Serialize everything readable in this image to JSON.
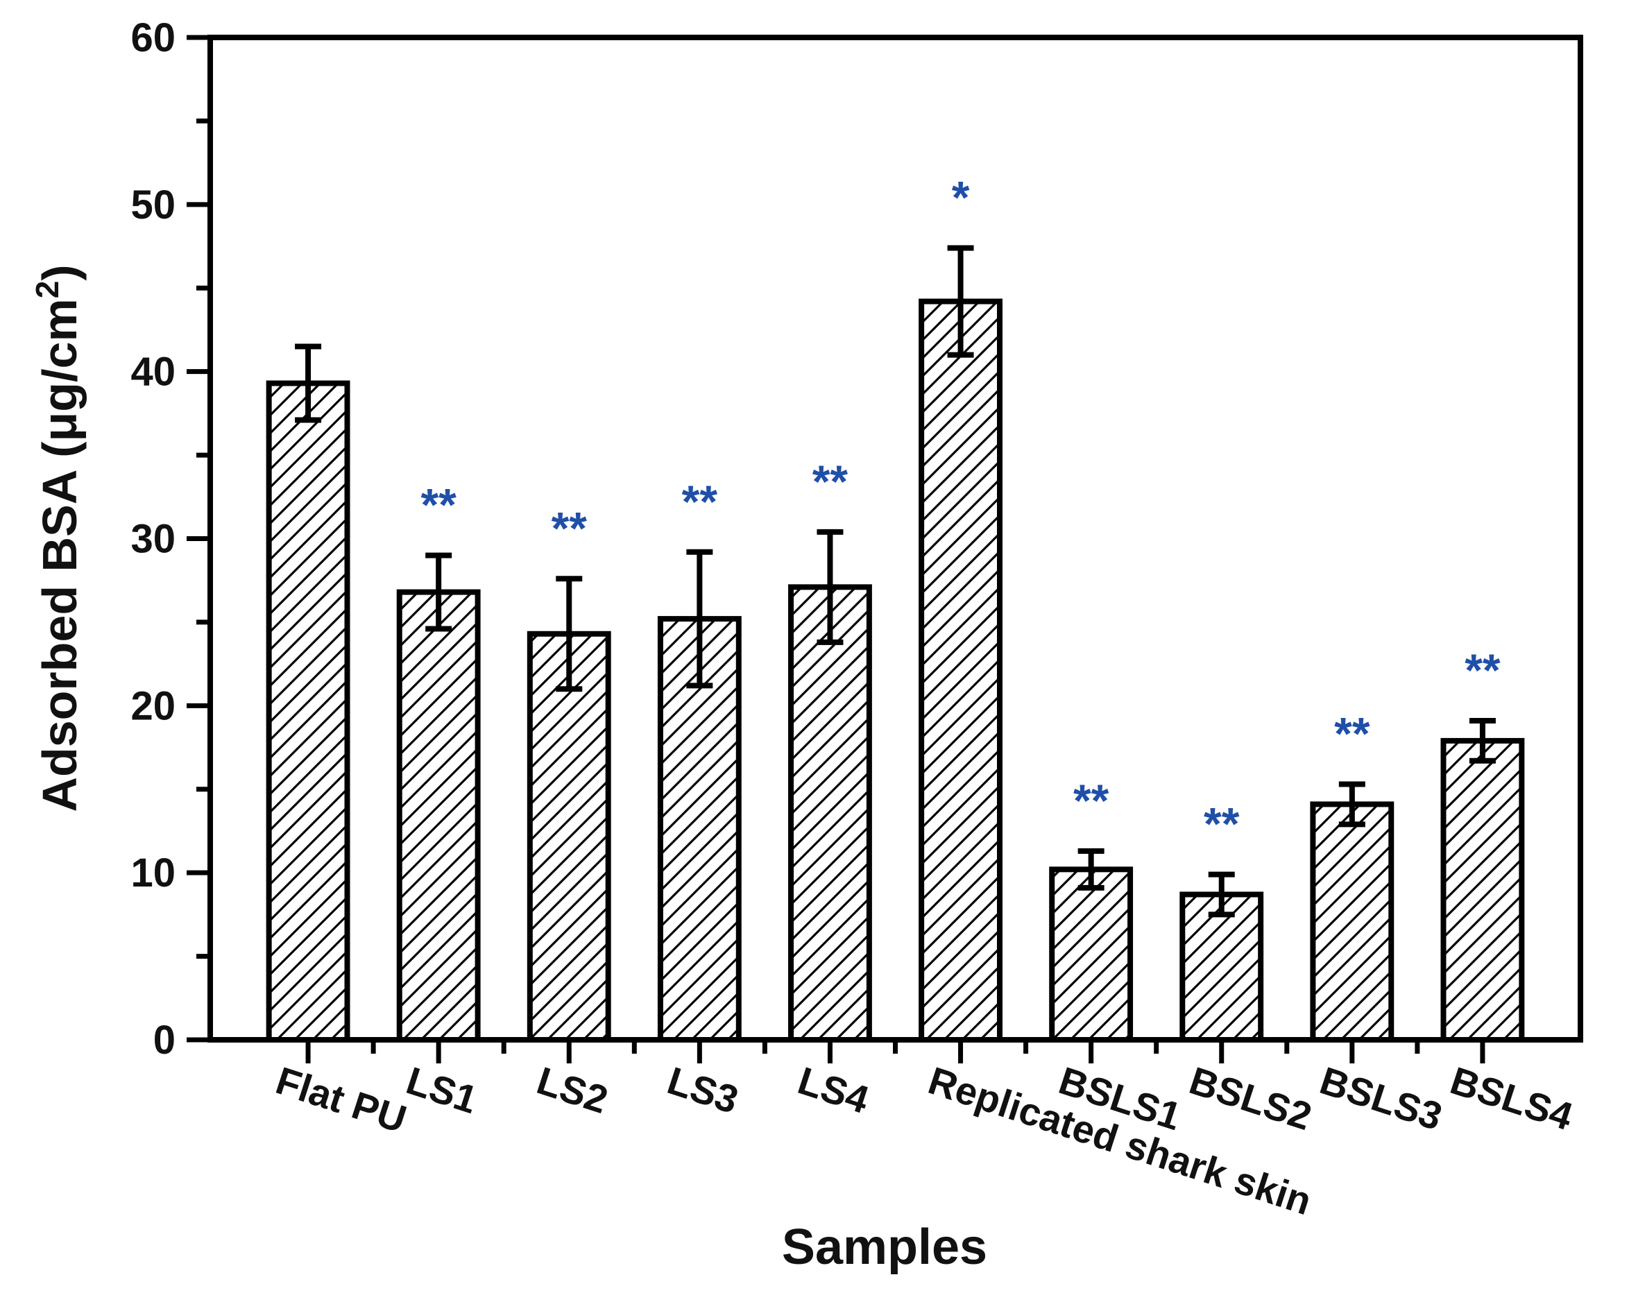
{
  "chart_data": {
    "type": "bar",
    "xlabel": "Samples",
    "ylabel": "Adsorbed BSA (μg/cm",
    "ylabel_superscript": "2",
    "ylabel_close": ")",
    "ylim": [
      0,
      60
    ],
    "yticks": [
      "0",
      "10",
      "20",
      "30",
      "40",
      "50",
      "60"
    ],
    "grid": false,
    "pattern": "diagonal-hatch",
    "colors": {
      "bar_edge": "#000000",
      "hatch": "#000000",
      "significance": "#1f4fa8",
      "axis": "#000000"
    },
    "bars": [
      {
        "category": "Flat PU",
        "value": 39.3,
        "error": 2.2,
        "sig": ""
      },
      {
        "category": "LS1",
        "value": 26.8,
        "error": 2.2,
        "sig": "**"
      },
      {
        "category": "LS2",
        "value": 24.3,
        "error": 3.3,
        "sig": "**"
      },
      {
        "category": "LS3",
        "value": 25.2,
        "error": 4.0,
        "sig": "**"
      },
      {
        "category": "LS4",
        "value": 27.1,
        "error": 3.3,
        "sig": "**"
      },
      {
        "category": "Replicated shark skin",
        "value": 44.2,
        "error": 3.2,
        "sig": "*"
      },
      {
        "category": "BSLS1",
        "value": 10.2,
        "error": 1.1,
        "sig": "**"
      },
      {
        "category": "BSLS2",
        "value": 8.7,
        "error": 1.2,
        "sig": "**"
      },
      {
        "category": "BSLS3",
        "value": 14.1,
        "error": 1.2,
        "sig": "**"
      },
      {
        "category": "BSLS4",
        "value": 17.9,
        "error": 1.2,
        "sig": "**"
      }
    ]
  }
}
